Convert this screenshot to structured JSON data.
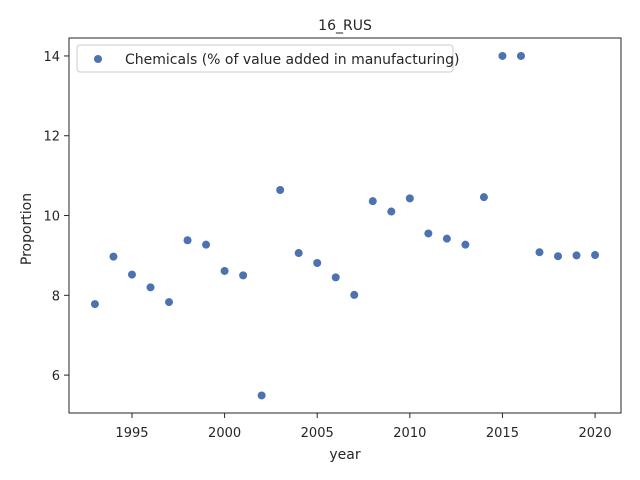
{
  "chart_data": {
    "type": "scatter",
    "title": "16_RUS",
    "xlabel": "year",
    "ylabel": "Proportion",
    "xlim": [
      1991.6,
      2021.4
    ],
    "ylim": [
      5.05,
      14.45
    ],
    "xticks": [
      1995,
      2000,
      2005,
      2010,
      2015,
      2020
    ],
    "yticks": [
      6,
      8,
      10,
      12,
      14
    ],
    "grid": false,
    "legend_position": "top-left",
    "series": [
      {
        "name": "Chemicals (% of value added in manufacturing)",
        "color": "#4c72b0",
        "x": [
          1993,
          1994,
          1995,
          1996,
          1997,
          1998,
          1999,
          2000,
          2001,
          2002,
          2003,
          2004,
          2005,
          2006,
          2007,
          2008,
          2009,
          2010,
          2011,
          2012,
          2013,
          2014,
          2015,
          2016,
          2017,
          2018,
          2019,
          2020
        ],
        "y": [
          7.78,
          8.97,
          8.52,
          8.2,
          7.83,
          9.38,
          9.27,
          8.61,
          8.5,
          5.49,
          10.64,
          9.06,
          8.81,
          8.45,
          8.01,
          10.36,
          10.1,
          10.43,
          9.55,
          9.42,
          9.27,
          10.46,
          14.0,
          14.0,
          9.08,
          8.98,
          9.0,
          9.01
        ]
      }
    ]
  }
}
